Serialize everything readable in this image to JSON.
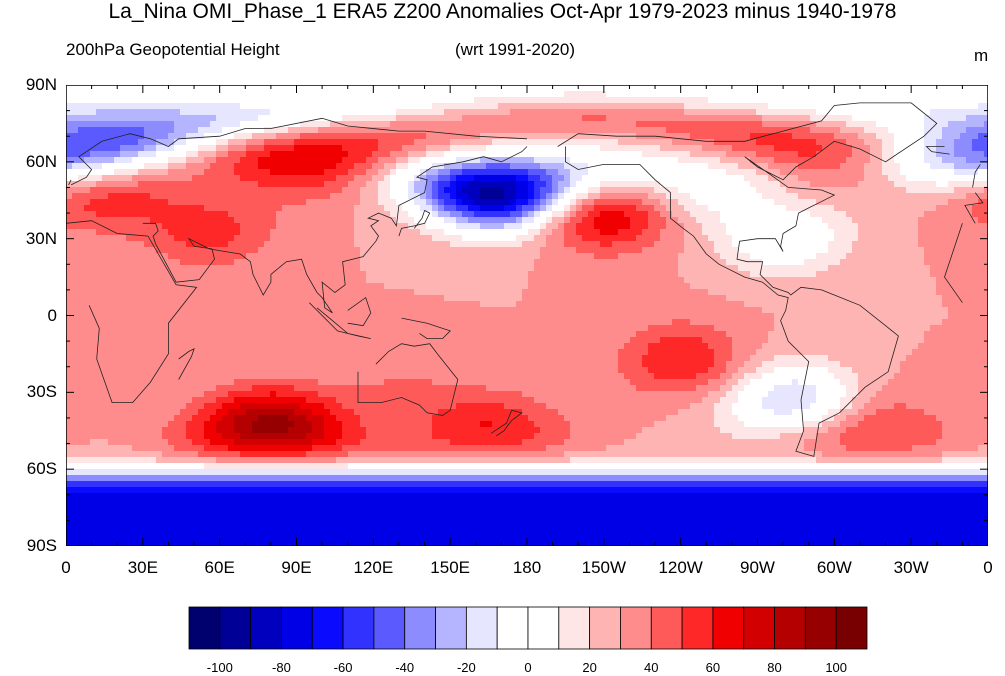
{
  "title": "La_Nina OMI_Phase_1 ERA5 Z200 Anomalies Oct-Apr 1979-2023 minus 1940-1978",
  "left_subtitle": "200hPa Geopotential Height",
  "center_subtitle": "(wrt 1991-2020)",
  "units": "m",
  "lat_ticks": [
    {
      "label": "90N",
      "lat": 90
    },
    {
      "label": "60N",
      "lat": 60
    },
    {
      "label": "30N",
      "lat": 30
    },
    {
      "label": "0",
      "lat": 0
    },
    {
      "label": "30S",
      "lat": -30
    },
    {
      "label": "60S",
      "lat": -60
    },
    {
      "label": "90S",
      "lat": -90
    }
  ],
  "lon_ticks": [
    {
      "label": "0",
      "lon": 0
    },
    {
      "label": "30E",
      "lon": 30
    },
    {
      "label": "60E",
      "lon": 60
    },
    {
      "label": "90E",
      "lon": 90
    },
    {
      "label": "120E",
      "lon": 120
    },
    {
      "label": "150E",
      "lon": 150
    },
    {
      "label": "180",
      "lon": 180
    },
    {
      "label": "150W",
      "lon": 210
    },
    {
      "label": "120W",
      "lon": 240
    },
    {
      "label": "90W",
      "lon": 270
    },
    {
      "label": "60W",
      "lon": 300
    },
    {
      "label": "30W",
      "lon": 330
    },
    {
      "label": "0",
      "lon": 360
    }
  ],
  "colorbar": {
    "colors": [
      "#00006e",
      "#000096",
      "#0000be",
      "#0000e6",
      "#0a0aff",
      "#3232ff",
      "#5a5aff",
      "#8c8cff",
      "#b4b4ff",
      "#e6e6ff",
      "#ffffff",
      "#ffffff",
      "#ffe6e6",
      "#ffb4b4",
      "#ff8c8c",
      "#ff5a5a",
      "#ff2828",
      "#f00000",
      "#d20000",
      "#b40000",
      "#960000",
      "#780000"
    ],
    "tick_labels": [
      {
        "label": "-100",
        "value": -100
      },
      {
        "label": "-80",
        "value": -80
      },
      {
        "label": "-60",
        "value": -60
      },
      {
        "label": "-40",
        "value": -40
      },
      {
        "label": "-20",
        "value": -20
      },
      {
        "label": "0",
        "value": 0
      },
      {
        "label": "20",
        "value": 20
      },
      {
        "label": "40",
        "value": 40
      },
      {
        "label": "60",
        "value": 60
      },
      {
        "label": "80",
        "value": 80
      },
      {
        "label": "100",
        "value": 100
      }
    ]
  },
  "anomaly_field": {
    "background_m": 30,
    "centers": [
      {
        "lon": 303,
        "lat": 68,
        "value": 85
      },
      {
        "lon": 95,
        "lat": 63,
        "value": 75
      },
      {
        "lon": 80,
        "lat": -43,
        "value": 95
      },
      {
        "lon": 210,
        "lat": 40,
        "value": 75
      },
      {
        "lon": 10,
        "lat": 48,
        "value": 60
      },
      {
        "lon": 55,
        "lat": 33,
        "value": 55
      },
      {
        "lon": 240,
        "lat": -17,
        "value": 60
      },
      {
        "lon": 165,
        "lat": -44,
        "value": 60
      },
      {
        "lon": 312,
        "lat": -44,
        "value": 60
      },
      {
        "lon": 130,
        "lat": -28,
        "value": 40
      },
      {
        "lon": 168,
        "lat": 48,
        "value": -100
      },
      {
        "lon": 22,
        "lat": 75,
        "value": -40
      },
      {
        "lon": 348,
        "lat": 62,
        "value": -40
      },
      {
        "lon": 285,
        "lat": -33,
        "value": -25
      },
      {
        "lon": 245,
        "lat": 52,
        "value": -5
      },
      {
        "lon": 280,
        "lat": 30,
        "value": -5
      }
    ],
    "southern_ring": {
      "lat": -80,
      "value": -80
    }
  }
}
